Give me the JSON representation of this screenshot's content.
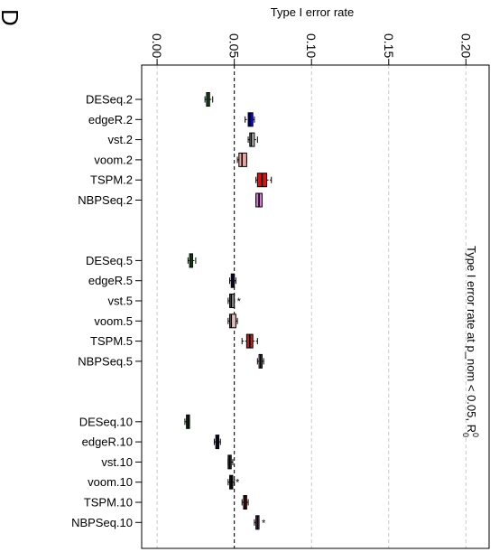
{
  "chart_data": {
    "type": "boxplot",
    "panel_label": "D",
    "title": "Type I error rate at p_nom < 0.05,  R",
    "title_superscript": "0",
    "title_subscript": "0",
    "xlabel": "Type I error rate",
    "xlim": [
      -0.01,
      0.215
    ],
    "xticks": [
      0.0,
      0.05,
      0.1,
      0.15,
      0.2
    ],
    "xtick_labels": [
      "0.00",
      "0.05",
      "0.10",
      "0.15",
      "0.20"
    ],
    "reference_line": 0.05,
    "grid": "vertical dashed at ticks",
    "categories": [
      {
        "label": "DESeq.2",
        "whisker_low": 0.031,
        "q1": 0.032,
        "median": 0.033,
        "q3": 0.034,
        "whisker_high": 0.036,
        "outliers": [],
        "color": "#22dd22"
      },
      {
        "label": "edgeR.2",
        "whisker_low": 0.057,
        "q1": 0.059,
        "median": 0.06,
        "q3": 0.062,
        "whisker_high": 0.063,
        "outliers": [],
        "color": "#0000ee"
      },
      {
        "label": "vst.2",
        "whisker_low": 0.059,
        "q1": 0.06,
        "median": 0.061,
        "q3": 0.063,
        "whisker_high": 0.065,
        "outliers": [],
        "color": "#b4b4b4"
      },
      {
        "label": "voom.2",
        "whisker_low": 0.052,
        "q1": 0.053,
        "median": 0.055,
        "q3": 0.058,
        "whisker_high": 0.058,
        "outliers": [],
        "color": "#f4a3a3"
      },
      {
        "label": "TSPM.2",
        "whisker_low": 0.064,
        "q1": 0.065,
        "median": 0.068,
        "q3": 0.071,
        "whisker_high": 0.074,
        "outliers": [],
        "color": "#dd1111"
      },
      {
        "label": "NBPSeq.2",
        "whisker_low": 0.064,
        "q1": 0.064,
        "median": 0.066,
        "q3": 0.068,
        "whisker_high": 0.068,
        "outliers": [],
        "color": "#dd77dd"
      },
      {
        "label": "DESeq.5",
        "whisker_low": 0.02,
        "q1": 0.021,
        "median": 0.022,
        "q3": 0.023,
        "whisker_high": 0.025,
        "outliers": [],
        "color": "#22bb22"
      },
      {
        "label": "edgeR.5",
        "whisker_low": 0.047,
        "q1": 0.048,
        "median": 0.049,
        "q3": 0.05,
        "whisker_high": 0.051,
        "outliers": [],
        "color": "#222288"
      },
      {
        "label": "vst.5",
        "whisker_low": 0.046,
        "q1": 0.047,
        "median": 0.048,
        "q3": 0.05,
        "whisker_high": 0.05,
        "outliers": [
          0.053
        ],
        "color": "#888888"
      },
      {
        "label": "voom.5",
        "whisker_low": 0.046,
        "q1": 0.047,
        "median": 0.048,
        "q3": 0.051,
        "whisker_high": 0.052,
        "outliers": [],
        "color": "#e8b8b8"
      },
      {
        "label": "TSPM.5",
        "whisker_low": 0.055,
        "q1": 0.058,
        "median": 0.06,
        "q3": 0.062,
        "whisker_high": 0.065,
        "outliers": [],
        "color": "#bb2222"
      },
      {
        "label": "NBPSeq.5",
        "whisker_low": 0.065,
        "q1": 0.066,
        "median": 0.067,
        "q3": 0.068,
        "whisker_high": 0.069,
        "outliers": [],
        "color": "#aa66aa"
      },
      {
        "label": "DESeq.10",
        "whisker_low": 0.018,
        "q1": 0.019,
        "median": 0.02,
        "q3": 0.021,
        "whisker_high": 0.021,
        "outliers": [],
        "color": "#116611"
      },
      {
        "label": "edgeR.10",
        "whisker_low": 0.037,
        "q1": 0.038,
        "median": 0.039,
        "q3": 0.04,
        "whisker_high": 0.041,
        "outliers": [],
        "color": "#1a1a66"
      },
      {
        "label": "vst.10",
        "whisker_low": 0.046,
        "q1": 0.046,
        "median": 0.047,
        "q3": 0.048,
        "whisker_high": 0.049,
        "outliers": [],
        "color": "#555555"
      },
      {
        "label": "voom.10",
        "whisker_low": 0.046,
        "q1": 0.047,
        "median": 0.048,
        "q3": 0.049,
        "whisker_high": 0.05,
        "outliers": [
          0.052
        ],
        "color": "#222222"
      },
      {
        "label": "TSPM.10",
        "whisker_low": 0.055,
        "q1": 0.056,
        "median": 0.057,
        "q3": 0.058,
        "whisker_high": 0.059,
        "outliers": [],
        "color": "#aa1111"
      },
      {
        "label": "NBPSeq.10",
        "whisker_low": 0.063,
        "q1": 0.064,
        "median": 0.065,
        "q3": 0.066,
        "whisker_high": 0.066,
        "outliers": [
          0.069
        ],
        "color": "#885588"
      }
    ],
    "groups": [
      [
        "DESeq.2",
        "edgeR.2",
        "vst.2",
        "voom.2",
        "TSPM.2",
        "NBPSeq.2"
      ],
      [
        "DESeq.5",
        "edgeR.5",
        "vst.5",
        "voom.5",
        "TSPM.5",
        "NBPSeq.5"
      ],
      [
        "DESeq.10",
        "edgeR.10",
        "vst.10",
        "voom.10",
        "TSPM.10",
        "NBPSeq.10"
      ]
    ]
  }
}
